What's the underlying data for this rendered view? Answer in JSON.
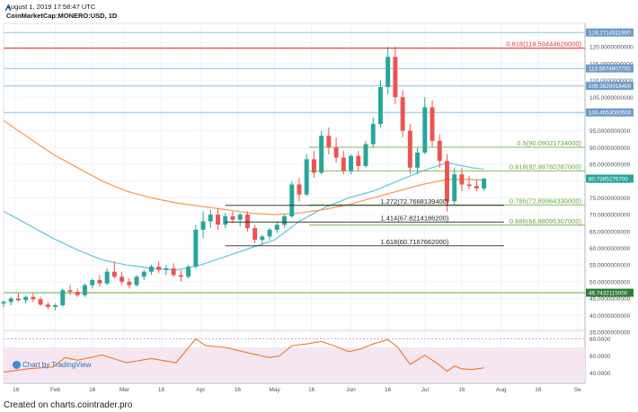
{
  "header": {
    "timestamp": "August 1, 2019 17:58:47 UTC",
    "symbol": "CoinMarketCap:MONERO:USD, 1D"
  },
  "footer": {
    "source": "Created on charts.cointrader.pro"
  },
  "branding": {
    "tradingview": "Chart by TradingView"
  },
  "colors": {
    "up": "#26a69a",
    "down": "#ef5350",
    "ma_fast": "#5dc6d9",
    "ma_slow": "#f59a4e",
    "fib_red": "#e53935",
    "fib_green": "#66a83a",
    "ext_black": "#222222",
    "hline_blue": "#8fc3e8",
    "rsi": "#f07820",
    "rsi_band": "#f5e6f2",
    "tag_blue": "#6e9ac9",
    "tag_green": "#2e7d32",
    "tag_teal": "#26a69a"
  },
  "chart_data": [
    {
      "type": "candlestick",
      "ylim": [
        35,
        127
      ],
      "y_ticks": [
        "35.0000000000",
        "40.0000000000",
        "45.0000000000",
        "50.0000000000",
        "55.0000000000",
        "60.0000000000",
        "65.0000000000",
        "70.0000000000",
        "75.0000000000",
        "80.0000000000",
        "85.0000000000",
        "90.0000000000",
        "95.0000000000",
        "100.0000000000",
        "105.0000000000",
        "110.0000000000",
        "115.0000000000",
        "120.0000000000"
      ],
      "x_ticks": [
        "16",
        "Feb",
        "16",
        "Mar",
        "16",
        "Apr",
        "16",
        "May",
        "16",
        "Jun",
        "16",
        "Jul",
        "16",
        "Aug",
        "16",
        "Se"
      ],
      "x_tick_days": [
        15,
        31,
        46,
        59,
        74,
        90,
        105,
        120,
        135,
        151,
        166,
        181,
        196,
        212,
        227,
        243
      ],
      "x_range_days": [
        10,
        246
      ],
      "price_tags": [
        {
          "label": "124.2714311900",
          "value": 124.27,
          "color": "blue"
        },
        {
          "label": "113.5674607700",
          "value": 113.57,
          "color": "blue"
        },
        {
          "label": "108.3620018400",
          "value": 108.36,
          "color": "blue"
        },
        {
          "label": "100.4553000500",
          "value": 100.46,
          "color": "blue"
        },
        {
          "label": "80.7385278700",
          "value": 80.74,
          "color": "teal"
        },
        {
          "label": "46.7432115000",
          "value": 46.74,
          "color": "green"
        }
      ],
      "horizontal_lines": [
        {
          "value": 124.27,
          "color": "blue"
        },
        {
          "value": 113.57,
          "color": "blue"
        },
        {
          "value": 108.36,
          "color": "blue"
        },
        {
          "value": 100.46,
          "color": "blue"
        },
        {
          "value": 46.74,
          "color": "green"
        }
      ],
      "fibonacci_retracements": [
        {
          "label": "0.618(119.59444626000)",
          "value": 119.594,
          "color": "red"
        },
        {
          "label": "0.5(90.09021734000)",
          "value": 90.09,
          "color": "green"
        },
        {
          "label": "0.618(82.99760287000)",
          "value": 82.998,
          "color": "green"
        },
        {
          "label": "0.786(72.89964330000)",
          "value": 72.9,
          "color": "green"
        },
        {
          "label": "0.886(66.88095307000)",
          "value": 66.88,
          "color": "green"
        }
      ],
      "fibonacci_extensions": [
        {
          "label": "1.272(72.7668139400)",
          "value": 72.767
        },
        {
          "label": "1.414(67.8214186200)",
          "value": 67.821
        },
        {
          "label": "1.618(60.7167662000)",
          "value": 60.717
        }
      ],
      "candles": [
        {
          "t": 10,
          "o": 43.5,
          "h": 44.5,
          "l": 42.5,
          "c": 44.0
        },
        {
          "t": 13,
          "o": 44.0,
          "h": 45.5,
          "l": 43.0,
          "c": 45.0
        },
        {
          "t": 16,
          "o": 45.0,
          "h": 46.5,
          "l": 44.0,
          "c": 44.5
        },
        {
          "t": 19,
          "o": 44.5,
          "h": 46.0,
          "l": 43.5,
          "c": 45.5
        },
        {
          "t": 22,
          "o": 45.5,
          "h": 46.5,
          "l": 44.0,
          "c": 44.8
        },
        {
          "t": 25,
          "o": 44.8,
          "h": 45.5,
          "l": 42.8,
          "c": 43.2
        },
        {
          "t": 28,
          "o": 43.2,
          "h": 44.0,
          "l": 41.8,
          "c": 42.5
        },
        {
          "t": 31,
          "o": 42.5,
          "h": 43.5,
          "l": 41.5,
          "c": 43.0
        },
        {
          "t": 34,
          "o": 43.0,
          "h": 48.0,
          "l": 42.5,
          "c": 47.5
        },
        {
          "t": 37,
          "o": 47.5,
          "h": 49.0,
          "l": 46.0,
          "c": 47.0
        },
        {
          "t": 40,
          "o": 47.0,
          "h": 48.0,
          "l": 45.5,
          "c": 46.0
        },
        {
          "t": 43,
          "o": 46.0,
          "h": 49.5,
          "l": 45.5,
          "c": 49.0
        },
        {
          "t": 46,
          "o": 49.0,
          "h": 51.0,
          "l": 48.0,
          "c": 50.5
        },
        {
          "t": 49,
          "o": 50.5,
          "h": 52.0,
          "l": 48.5,
          "c": 49.5
        },
        {
          "t": 52,
          "o": 49.5,
          "h": 54.0,
          "l": 49.0,
          "c": 53.0
        },
        {
          "t": 55,
          "o": 53.0,
          "h": 56.0,
          "l": 51.0,
          "c": 51.5
        },
        {
          "t": 58,
          "o": 51.5,
          "h": 53.0,
          "l": 49.0,
          "c": 50.0
        },
        {
          "t": 61,
          "o": 50.0,
          "h": 51.0,
          "l": 48.0,
          "c": 49.0
        },
        {
          "t": 64,
          "o": 49.0,
          "h": 52.0,
          "l": 48.5,
          "c": 51.5
        },
        {
          "t": 67,
          "o": 51.5,
          "h": 53.5,
          "l": 50.5,
          "c": 53.0
        },
        {
          "t": 70,
          "o": 53.0,
          "h": 55.0,
          "l": 52.0,
          "c": 54.5
        },
        {
          "t": 73,
          "o": 54.5,
          "h": 56.0,
          "l": 52.5,
          "c": 53.5
        },
        {
          "t": 76,
          "o": 53.5,
          "h": 55.0,
          "l": 52.0,
          "c": 54.0
        },
        {
          "t": 79,
          "o": 54.0,
          "h": 55.5,
          "l": 51.5,
          "c": 52.0
        },
        {
          "t": 82,
          "o": 52.0,
          "h": 53.5,
          "l": 50.0,
          "c": 51.5
        },
        {
          "t": 85,
          "o": 51.5,
          "h": 55.0,
          "l": 51.0,
          "c": 54.5
        },
        {
          "t": 88,
          "o": 54.5,
          "h": 67.0,
          "l": 54.0,
          "c": 65.5
        },
        {
          "t": 91,
          "o": 65.5,
          "h": 71.0,
          "l": 63.0,
          "c": 68.0
        },
        {
          "t": 94,
          "o": 68.0,
          "h": 71.5,
          "l": 66.0,
          "c": 70.0
        },
        {
          "t": 97,
          "o": 70.0,
          "h": 72.0,
          "l": 65.5,
          "c": 67.0
        },
        {
          "t": 100,
          "o": 67.0,
          "h": 70.5,
          "l": 66.0,
          "c": 69.5
        },
        {
          "t": 103,
          "o": 69.5,
          "h": 71.0,
          "l": 67.5,
          "c": 68.5
        },
        {
          "t": 106,
          "o": 68.5,
          "h": 70.5,
          "l": 66.5,
          "c": 70.0
        },
        {
          "t": 109,
          "o": 70.0,
          "h": 71.0,
          "l": 65.0,
          "c": 66.0
        },
        {
          "t": 112,
          "o": 66.0,
          "h": 67.0,
          "l": 61.5,
          "c": 62.5
        },
        {
          "t": 115,
          "o": 62.5,
          "h": 64.0,
          "l": 61.0,
          "c": 63.5
        },
        {
          "t": 118,
          "o": 63.5,
          "h": 66.0,
          "l": 62.5,
          "c": 65.5
        },
        {
          "t": 121,
          "o": 65.5,
          "h": 68.0,
          "l": 64.5,
          "c": 67.0
        },
        {
          "t": 124,
          "o": 67.0,
          "h": 70.0,
          "l": 66.0,
          "c": 69.5
        },
        {
          "t": 127,
          "o": 69.5,
          "h": 80.0,
          "l": 69.0,
          "c": 79.0
        },
        {
          "t": 130,
          "o": 79.0,
          "h": 81.0,
          "l": 74.0,
          "c": 76.0
        },
        {
          "t": 133,
          "o": 76.0,
          "h": 88.0,
          "l": 75.5,
          "c": 86.5
        },
        {
          "t": 136,
          "o": 86.5,
          "h": 89.0,
          "l": 81.0,
          "c": 82.5
        },
        {
          "t": 139,
          "o": 82.5,
          "h": 95.0,
          "l": 82.0,
          "c": 93.5
        },
        {
          "t": 142,
          "o": 93.5,
          "h": 96.0,
          "l": 88.0,
          "c": 90.0
        },
        {
          "t": 145,
          "o": 90.0,
          "h": 93.0,
          "l": 85.5,
          "c": 87.0
        },
        {
          "t": 148,
          "o": 87.0,
          "h": 89.0,
          "l": 82.0,
          "c": 83.0
        },
        {
          "t": 151,
          "o": 83.0,
          "h": 88.0,
          "l": 82.0,
          "c": 87.5
        },
        {
          "t": 154,
          "o": 87.5,
          "h": 89.0,
          "l": 83.0,
          "c": 84.5
        },
        {
          "t": 157,
          "o": 84.5,
          "h": 92.0,
          "l": 84.0,
          "c": 91.0
        },
        {
          "t": 160,
          "o": 91.0,
          "h": 99.0,
          "l": 90.0,
          "c": 97.0
        },
        {
          "t": 163,
          "o": 97.0,
          "h": 110.0,
          "l": 96.0,
          "c": 108.0
        },
        {
          "t": 166,
          "o": 108.0,
          "h": 120.0,
          "l": 106.0,
          "c": 117.0
        },
        {
          "t": 169,
          "o": 117.0,
          "h": 120.0,
          "l": 103.0,
          "c": 105.0
        },
        {
          "t": 172,
          "o": 105.0,
          "h": 107.0,
          "l": 93.0,
          "c": 95.0
        },
        {
          "t": 175,
          "o": 95.0,
          "h": 97.0,
          "l": 82.0,
          "c": 84.0
        },
        {
          "t": 178,
          "o": 84.0,
          "h": 90.0,
          "l": 82.0,
          "c": 88.5
        },
        {
          "t": 181,
          "o": 88.5,
          "h": 105.0,
          "l": 88.0,
          "c": 102.0
        },
        {
          "t": 184,
          "o": 102.0,
          "h": 104.0,
          "l": 90.0,
          "c": 92.0
        },
        {
          "t": 187,
          "o": 92.0,
          "h": 94.0,
          "l": 84.0,
          "c": 86.0
        },
        {
          "t": 190,
          "o": 86.0,
          "h": 88.0,
          "l": 71.0,
          "c": 74.0
        },
        {
          "t": 193,
          "o": 74.0,
          "h": 84.0,
          "l": 73.0,
          "c": 82.0
        },
        {
          "t": 196,
          "o": 82.0,
          "h": 84.0,
          "l": 77.0,
          "c": 79.0
        },
        {
          "t": 199,
          "o": 79.0,
          "h": 81.5,
          "l": 77.5,
          "c": 78.5
        },
        {
          "t": 202,
          "o": 78.5,
          "h": 80.5,
          "l": 77.0,
          "c": 77.8
        },
        {
          "t": 205,
          "o": 77.8,
          "h": 81.0,
          "l": 77.0,
          "c": 80.7
        }
      ],
      "moving_averages": [
        {
          "color": "cyan",
          "points": [
            [
              10,
              71
            ],
            [
              20,
              67
            ],
            [
              30,
              63
            ],
            [
              40,
              59.5
            ],
            [
              50,
              56.5
            ],
            [
              60,
              55
            ],
            [
              70,
              54
            ],
            [
              80,
              53.5
            ],
            [
              90,
              55
            ],
            [
              100,
              57.5
            ],
            [
              110,
              60
            ],
            [
              120,
              62.5
            ],
            [
              130,
              68
            ],
            [
              140,
              72
            ],
            [
              150,
              75
            ],
            [
              160,
              77
            ],
            [
              170,
              80
            ],
            [
              180,
              83
            ],
            [
              190,
              85.5
            ],
            [
              200,
              84
            ],
            [
              205,
              83.5
            ]
          ]
        },
        {
          "color": "orange",
          "points": [
            [
              10,
              98
            ],
            [
              20,
              93
            ],
            [
              30,
              88
            ],
            [
              40,
              84
            ],
            [
              50,
              80
            ],
            [
              60,
              77
            ],
            [
              70,
              75
            ],
            [
              80,
              73.5
            ],
            [
              90,
              72.5
            ],
            [
              100,
              71.5
            ],
            [
              110,
              70.5
            ],
            [
              120,
              70
            ],
            [
              130,
              70.5
            ],
            [
              140,
              71.5
            ],
            [
              150,
              73
            ],
            [
              160,
              75
            ],
            [
              170,
              77
            ],
            [
              180,
              79
            ],
            [
              190,
              80.5
            ],
            [
              200,
              80.5
            ],
            [
              205,
              80.3
            ]
          ]
        }
      ]
    },
    {
      "type": "line",
      "name": "RSI",
      "ylim": [
        30,
        90
      ],
      "y_ticks": [
        "40.0000",
        "60.0000",
        "80.0000"
      ],
      "band": [
        30,
        70
      ],
      "points": [
        [
          10,
          41
        ],
        [
          20,
          45
        ],
        [
          30,
          47
        ],
        [
          35,
          58
        ],
        [
          40,
          55
        ],
        [
          50,
          61
        ],
        [
          60,
          52
        ],
        [
          70,
          57
        ],
        [
          80,
          52
        ],
        [
          88,
          80
        ],
        [
          92,
          72
        ],
        [
          100,
          70
        ],
        [
          110,
          63
        ],
        [
          118,
          58
        ],
        [
          122,
          60
        ],
        [
          127,
          72
        ],
        [
          133,
          74
        ],
        [
          139,
          77
        ],
        [
          145,
          71
        ],
        [
          150,
          65
        ],
        [
          155,
          68
        ],
        [
          160,
          74
        ],
        [
          166,
          79
        ],
        [
          170,
          70
        ],
        [
          175,
          50
        ],
        [
          181,
          61
        ],
        [
          187,
          49
        ],
        [
          190,
          42
        ],
        [
          193,
          48
        ],
        [
          196,
          45
        ],
        [
          200,
          44
        ],
        [
          205,
          46
        ]
      ]
    }
  ]
}
